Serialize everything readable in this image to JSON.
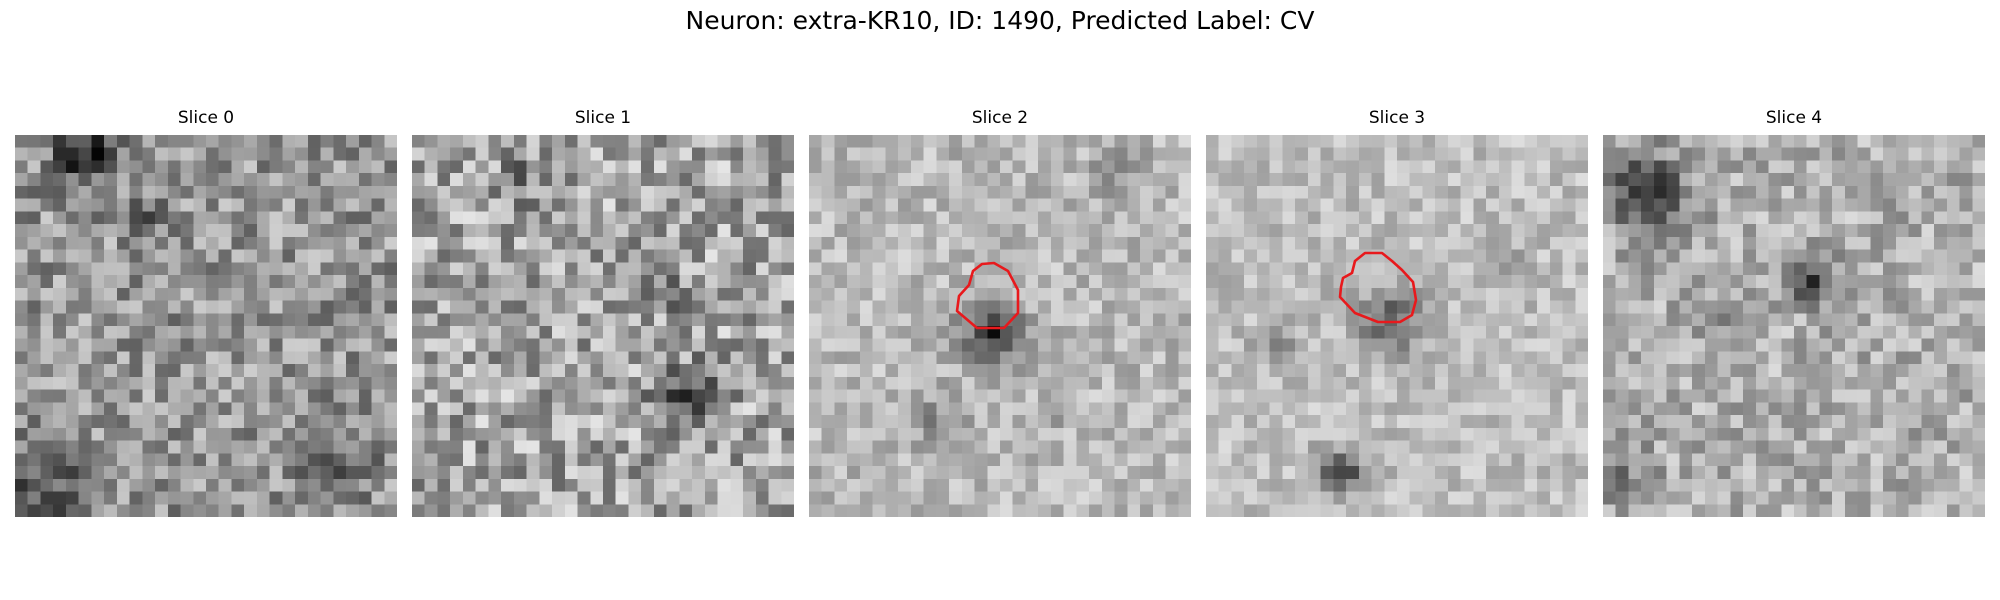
{
  "figure": {
    "title": "Neuron: extra-KR10, ID: 1490, Predicted Label: CV"
  },
  "panels": [
    {
      "title": "Slice 0",
      "has_contour": false
    },
    {
      "title": "Slice 1",
      "has_contour": false
    },
    {
      "title": "Slice 2",
      "has_contour": true
    },
    {
      "title": "Slice 3",
      "has_contour": true
    },
    {
      "title": "Slice 4",
      "has_contour": false
    }
  ],
  "colors": {
    "contour": "#e8191c",
    "colormap": "grayscale"
  }
}
